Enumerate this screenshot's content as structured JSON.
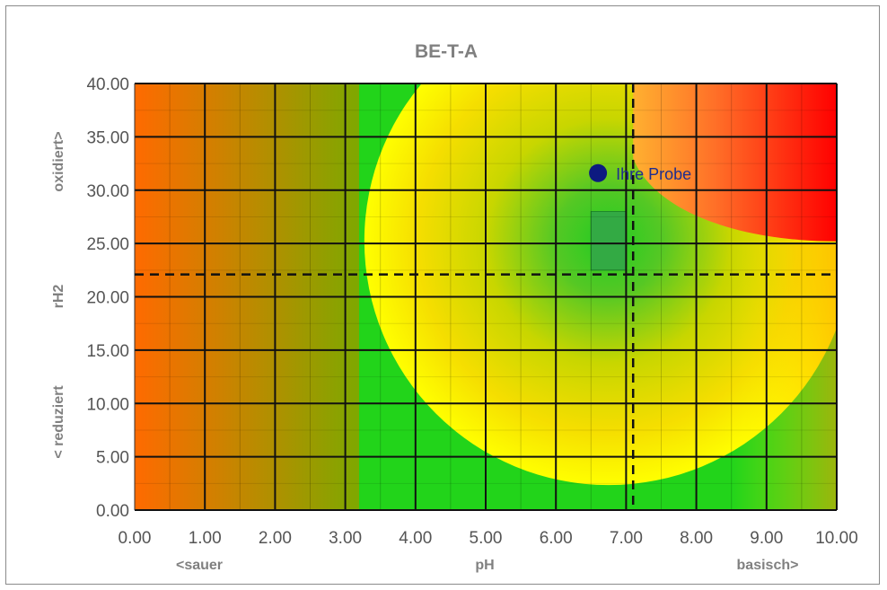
{
  "chart_data": {
    "type": "heatmap",
    "title": "BE-T-A",
    "xlabel": "pH",
    "xlabel_left": "<sauer",
    "xlabel_right": "basisch>",
    "ylabel": "rH2",
    "ylabel_bottom": "< reduziert",
    "ylabel_top": "oxidiert>",
    "xlim": [
      0,
      10
    ],
    "ylim": [
      0,
      40
    ],
    "xticks": [
      "0.00",
      "1.00",
      "2.00",
      "3.00",
      "4.00",
      "5.00",
      "6.00",
      "7.00",
      "8.00",
      "9.00",
      "10.00"
    ],
    "yticks": [
      "0.00",
      "5.00",
      "10.00",
      "15.00",
      "20.00",
      "25.00",
      "30.00",
      "35.00",
      "40.00"
    ],
    "reference_lines": {
      "vertical_x": 7.1,
      "horizontal_y": 22.1
    },
    "optimum_zone": {
      "x": [
        6.5,
        7.0
      ],
      "y": [
        22.5,
        28.0
      ]
    },
    "sample": {
      "name": "Ihre Probe",
      "x": 6.6,
      "y": 31.6
    },
    "colors": {
      "acid_edge": "#ff6600",
      "green": "#22cc22",
      "yellow": "#ffff00",
      "red": "#ff0000",
      "sample_marker": "#0d1a80",
      "zone": "#33aa44"
    }
  }
}
